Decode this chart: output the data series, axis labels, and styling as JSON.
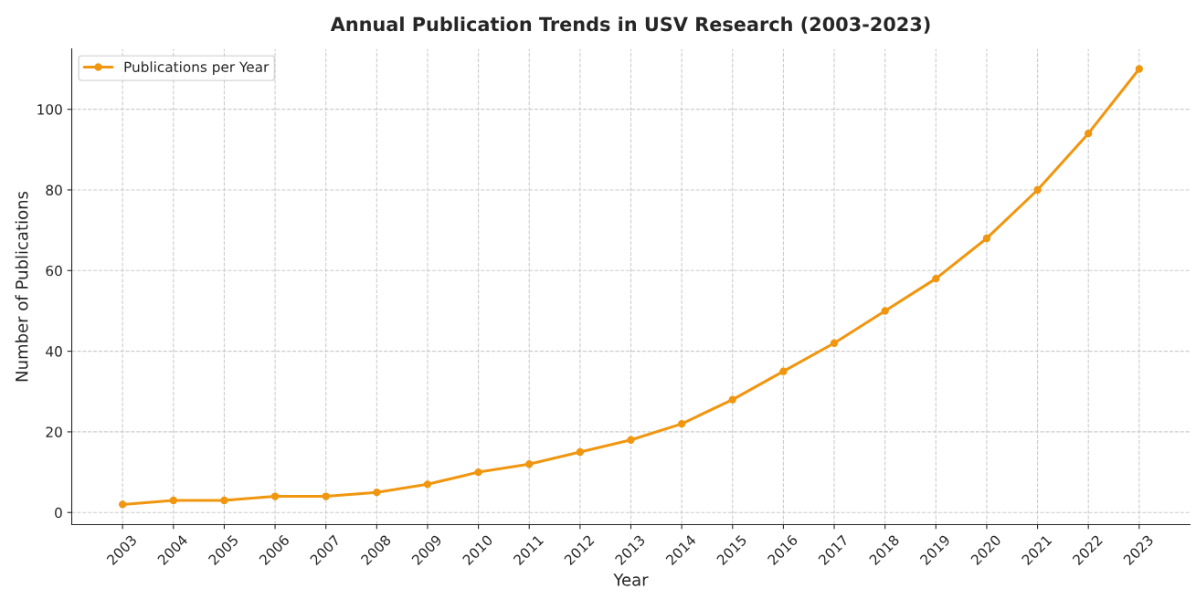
{
  "chart_data": {
    "type": "line",
    "title": "Annual Publication Trends in USV Research (2003-2023)",
    "xlabel": "Year",
    "ylabel": "Number of Publications",
    "categories": [
      "2003",
      "2004",
      "2005",
      "2006",
      "2007",
      "2008",
      "2009",
      "2010",
      "2011",
      "2012",
      "2013",
      "2014",
      "2015",
      "2016",
      "2017",
      "2018",
      "2019",
      "2020",
      "2021",
      "2022",
      "2023"
    ],
    "series": [
      {
        "name": "Publications per Year",
        "color": "#f0960f",
        "values": [
          2,
          3,
          3,
          4,
          4,
          5,
          7,
          10,
          12,
          15,
          18,
          22,
          28,
          35,
          42,
          50,
          58,
          68,
          80,
          94,
          110
        ]
      }
    ],
    "ylim": [
      -3,
      115
    ],
    "yticks": [
      0,
      20,
      40,
      60,
      80,
      100
    ],
    "grid": true,
    "legend": "top left",
    "marker": "circle",
    "line_style": "solid"
  }
}
